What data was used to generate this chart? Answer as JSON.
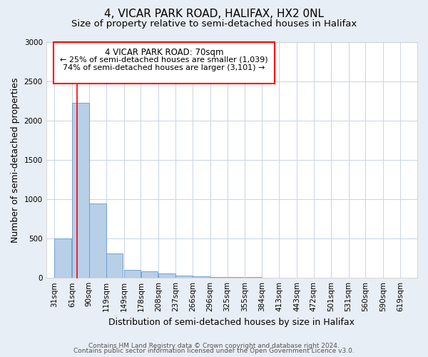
{
  "title": "4, VICAR PARK ROAD, HALIFAX, HX2 0NL",
  "subtitle": "Size of property relative to semi-detached houses in Halifax",
  "xlabel": "Distribution of semi-detached houses by size in Halifax",
  "ylabel": "Number of semi-detached properties",
  "bar_left_edges": [
    31,
    61,
    90,
    119,
    149,
    178,
    208,
    237,
    266,
    296,
    325,
    355,
    384,
    413,
    443,
    472,
    501,
    531,
    560,
    590
  ],
  "bar_widths": [
    29,
    29,
    29,
    29,
    29,
    29,
    29,
    29,
    29,
    29,
    29,
    29,
    29,
    29,
    29,
    29,
    29,
    29,
    29,
    29
  ],
  "bar_heights": [
    500,
    2230,
    950,
    310,
    100,
    85,
    55,
    30,
    20,
    15,
    10,
    8,
    5,
    3,
    2,
    2,
    1,
    1,
    1,
    1
  ],
  "bar_color": "#b8cfe8",
  "bar_edgecolor": "#6699cc",
  "x_tick_labels": [
    "31sqm",
    "61sqm",
    "90sqm",
    "119sqm",
    "149sqm",
    "178sqm",
    "208sqm",
    "237sqm",
    "266sqm",
    "296sqm",
    "325sqm",
    "355sqm",
    "384sqm",
    "413sqm",
    "443sqm",
    "472sqm",
    "501sqm",
    "531sqm",
    "560sqm",
    "590sqm",
    "619sqm"
  ],
  "x_tick_positions": [
    31,
    61,
    90,
    119,
    149,
    178,
    208,
    237,
    266,
    296,
    325,
    355,
    384,
    413,
    443,
    472,
    501,
    531,
    560,
    590,
    619
  ],
  "ylim": [
    0,
    3000
  ],
  "yticks": [
    0,
    500,
    1000,
    1500,
    2000,
    2500,
    3000
  ],
  "xlim_left": 17,
  "xlim_right": 648,
  "property_line_x": 70,
  "property_label": "4 VICAR PARK ROAD: 70sqm",
  "annotation_line1": "← 25% of semi-detached houses are smaller (1,039)",
  "annotation_line2": "74% of semi-detached houses are larger (3,101) →",
  "footer_line1": "Contains HM Land Registry data © Crown copyright and database right 2024.",
  "footer_line2": "Contains public sector information licensed under the Open Government Licence v3.0.",
  "bg_color": "#e8eef5",
  "plot_bg_color": "#ffffff",
  "grid_color": "#c8d4e8",
  "title_fontsize": 11,
  "subtitle_fontsize": 9.5,
  "axis_label_fontsize": 9,
  "tick_fontsize": 7.5,
  "footer_fontsize": 6.5,
  "annot_fontsize": 8.5,
  "annot_label_fontsize": 8
}
